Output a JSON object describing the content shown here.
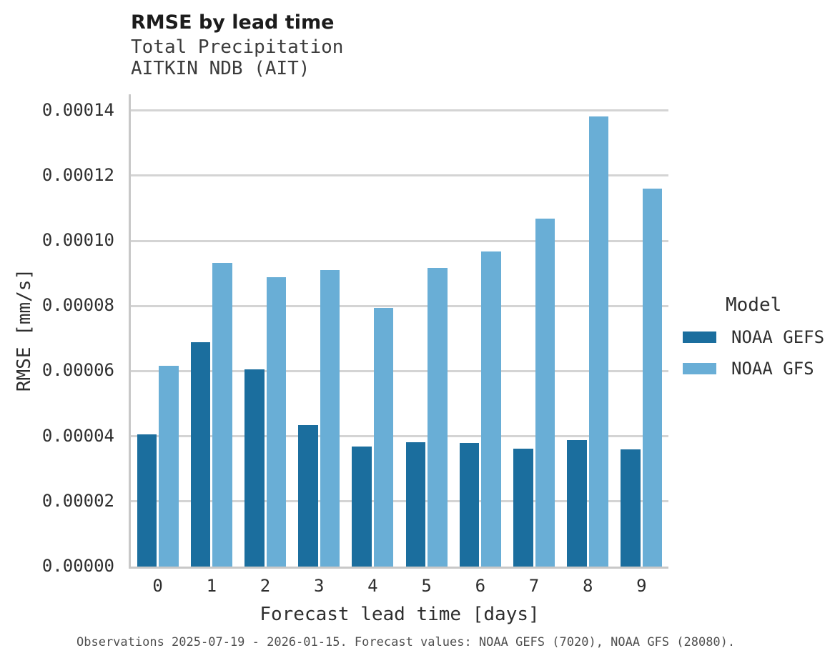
{
  "header": {
    "title": "RMSE by lead time",
    "subtitle1": "Total Precipitation",
    "subtitle2": "AITKIN NDB (AIT)"
  },
  "chart_data": {
    "type": "bar",
    "title": "RMSE by lead time",
    "subtitle": [
      "Total Precipitation",
      "AITKIN NDB (AIT)"
    ],
    "categories": [
      "0",
      "1",
      "2",
      "3",
      "4",
      "5",
      "6",
      "7",
      "8",
      "9"
    ],
    "series": [
      {
        "name": "NOAA GEFS",
        "color": "#1b6e9e",
        "values": [
          4.05e-05,
          6.89e-05,
          6.06e-05,
          4.35e-05,
          3.68e-05,
          3.81e-05,
          3.79e-05,
          3.62e-05,
          3.89e-05,
          3.6e-05
        ]
      },
      {
        "name": "NOAA GFS",
        "color": "#69aed6",
        "values": [
          6.17e-05,
          9.33e-05,
          8.89e-05,
          9.11e-05,
          7.94e-05,
          9.17e-05,
          9.68e-05,
          0.0001068,
          0.0001383,
          0.0001161
        ]
      }
    ],
    "xlabel": "Forecast lead time [days]",
    "ylabel": "RMSE [mm/s]",
    "ylim": [
      0,
      0.000145
    ],
    "yticks": [
      0,
      2e-05,
      4e-05,
      6e-05,
      8e-05,
      0.0001,
      0.00012,
      0.00014
    ],
    "ytick_labels": [
      "0.00000",
      "0.00002",
      "0.00004",
      "0.00006",
      "0.00008",
      "0.00010",
      "0.00012",
      "0.00014"
    ],
    "grid": "horizontal-only",
    "legend_position": "right"
  },
  "legend": {
    "title": "Model",
    "items": [
      {
        "label": "NOAA GEFS",
        "color": "#1b6e9e"
      },
      {
        "label": "NOAA GFS",
        "color": "#69aed6"
      }
    ]
  },
  "caption": "Observations 2025-07-19 - 2026-01-15. Forecast values: NOAA GEFS (7020), NOAA GFS (28080)."
}
